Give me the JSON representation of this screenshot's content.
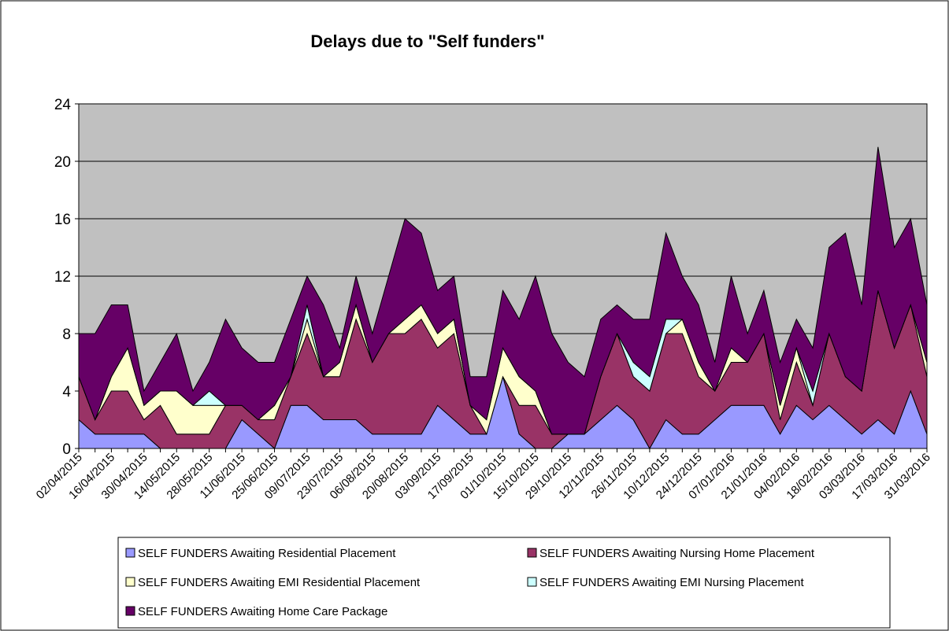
{
  "chart_data": {
    "type": "stacked_area",
    "title": "Delays due to \"Self funders\"",
    "categories": [
      "02/04/2015",
      null,
      "16/04/2015",
      null,
      "30/04/2015",
      null,
      "14/05/2015",
      null,
      "28/05/2015",
      null,
      "11/06/2015",
      null,
      "25/06/2015",
      null,
      "09/07/2015",
      null,
      "23/07/2015",
      null,
      "06/08/2015",
      null,
      "20/08/2015",
      null,
      "03/09/2015",
      null,
      "17/09/2015",
      null,
      "01/10/2015",
      null,
      "15/10/2015",
      null,
      "29/10/2015",
      null,
      "12/11/2015",
      null,
      "26/11/2015",
      null,
      "10/12/2015",
      null,
      "24/12/2015",
      null,
      "07/01/2016",
      null,
      "21/01/2016",
      null,
      "04/02/2016",
      null,
      "18/02/2016",
      null,
      "03/03/2016",
      null,
      "17/03/2016",
      null,
      "31/03/2016"
    ],
    "series": [
      {
        "name": "SELF FUNDERS Awaiting Residential Placement",
        "color": "#9999ff",
        "values": [
          2,
          1,
          1,
          1,
          1,
          0,
          0,
          0,
          0,
          0,
          2,
          1,
          0,
          3,
          3,
          2,
          2,
          2,
          1,
          1,
          1,
          1,
          3,
          2,
          1,
          1,
          5,
          1,
          0,
          0,
          1,
          1,
          2,
          3,
          2,
          0,
          2,
          1,
          1,
          2,
          3,
          3,
          3,
          1,
          3,
          2,
          3,
          2,
          1,
          2,
          1,
          4,
          1
        ]
      },
      {
        "name": "SELF FUNDERS Awaiting Nursing Home Placement",
        "color": "#993366",
        "values": [
          3,
          1,
          3,
          3,
          1,
          3,
          1,
          1,
          1,
          3,
          1,
          1,
          2,
          2,
          5,
          3,
          3,
          7,
          5,
          7,
          7,
          8,
          4,
          6,
          2,
          0,
          0,
          2,
          3,
          1,
          0,
          0,
          3,
          5,
          3,
          4,
          6,
          7,
          4,
          2,
          3,
          3,
          5,
          1,
          3,
          1,
          5,
          3,
          3,
          9,
          6,
          6,
          4
        ]
      },
      {
        "name": "SELF FUNDERS Awaiting EMI Residential Placement",
        "color": "#ffffcc",
        "values": [
          0,
          0,
          1,
          3,
          1,
          1,
          3,
          2,
          2,
          0,
          0,
          0,
          1,
          0,
          1,
          0,
          1,
          1,
          0,
          0,
          1,
          1,
          1,
          1,
          0,
          1,
          2,
          2,
          1,
          0,
          0,
          0,
          0,
          0,
          0,
          0,
          0,
          1,
          1,
          0,
          1,
          0,
          0,
          1,
          1,
          0,
          0,
          0,
          0,
          0,
          0,
          0,
          1
        ]
      },
      {
        "name": "SELF FUNDERS Awaiting EMI Nursing Placement",
        "color": "#ccffff",
        "values": [
          0,
          0,
          0,
          0,
          0,
          0,
          0,
          0,
          1,
          0,
          0,
          0,
          0,
          0,
          1,
          0,
          0,
          0,
          0,
          0,
          0,
          0,
          0,
          0,
          0,
          0,
          0,
          0,
          0,
          0,
          0,
          0,
          0,
          0,
          1,
          1,
          1,
          0,
          0,
          0,
          0,
          0,
          0,
          0,
          0,
          1,
          0,
          0,
          0,
          0,
          0,
          0,
          0
        ]
      },
      {
        "name": "SELF FUNDERS Awaiting Home Care Package",
        "color": "#660066",
        "values": [
          3,
          6,
          5,
          3,
          1,
          2,
          4,
          1,
          2,
          6,
          4,
          4,
          3,
          4,
          2,
          5,
          1,
          2,
          2,
          4,
          7,
          5,
          3,
          3,
          2,
          3,
          4,
          4,
          8,
          7,
          5,
          4,
          4,
          2,
          3,
          4,
          6,
          3,
          4,
          2,
          5,
          2,
          3,
          3,
          2,
          3,
          6,
          10,
          6,
          10,
          7,
          6,
          4
        ]
      }
    ],
    "ylim": [
      0,
      24
    ],
    "yticks": [
      0,
      4,
      8,
      12,
      16,
      20,
      24
    ],
    "grid": true,
    "plot_background": "#c0c0c0",
    "legend": "bottom"
  }
}
